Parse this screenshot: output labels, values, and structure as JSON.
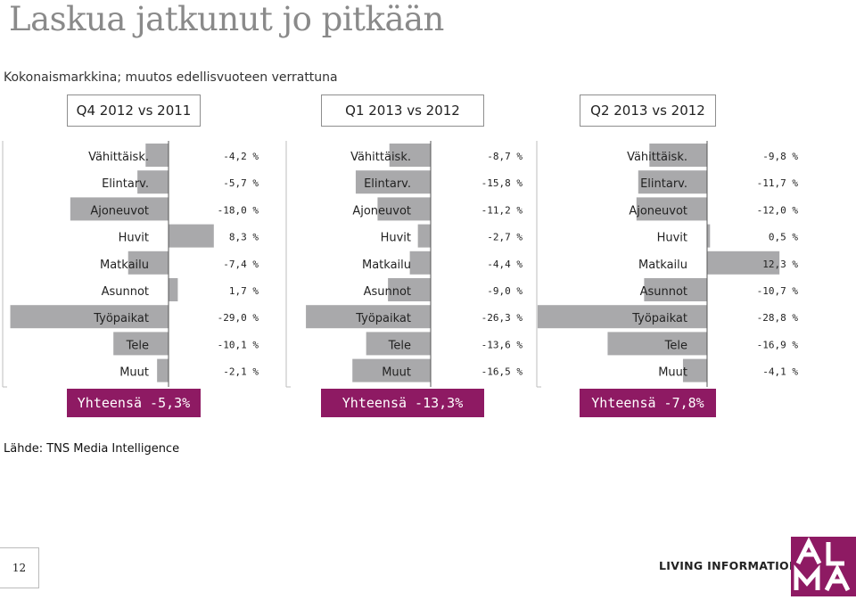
{
  "title": "Laskua jatkunut jo pitkään",
  "subtitle": "Kokonaismarkkina; muutos edellisvuoteen verrattuna",
  "source": "Lähde: TNS Media Intelligence",
  "page_number": "12",
  "footer": {
    "tagline": "LIVING INFORMATION",
    "logo": "ALMA"
  },
  "colors": {
    "bar": "#a9a9ab",
    "total": "#8e1a63",
    "axis": "#555555"
  },
  "chart_data": [
    {
      "type": "bar",
      "title": "Q4 2012 vs 2011",
      "total": "Yhteensä -5,3%",
      "categories": [
        "Vähittäisk.",
        "Elintarv.",
        "Ajoneuvot",
        "Huvit",
        "Matkailu",
        "Asunnot",
        "Työpaikat",
        "Tele",
        "Muut"
      ],
      "values": [
        -4.2,
        -5.7,
        -18.0,
        8.3,
        -7.4,
        1.7,
        -29.0,
        -10.1,
        -2.1
      ],
      "value_labels": [
        "-4,2 %",
        "-5,7 %",
        "-18,0 %",
        "8,3 %",
        "-7,4 %",
        "1,7 %",
        "-29,0 %",
        "-10,1 %",
        "-2,1 %"
      ]
    },
    {
      "type": "bar",
      "title": "Q1 2013 vs 2012",
      "total": "Yhteensä -13,3%",
      "categories": [
        "Vähittäisk.",
        "Elintarv.",
        "Ajoneuvot",
        "Huvit",
        "Matkailu",
        "Asunnot",
        "Työpaikat",
        "Tele",
        "Muut"
      ],
      "values": [
        -8.7,
        -15.8,
        -11.2,
        -2.7,
        -4.4,
        -9.0,
        -26.3,
        -13.6,
        -16.5
      ],
      "value_labels": [
        "-8,7 %",
        "-15,8 %",
        "-11,2 %",
        "-2,7 %",
        "-4,4 %",
        "-9,0 %",
        "-26,3 %",
        "-13,6 %",
        "-16,5 %"
      ]
    },
    {
      "type": "bar",
      "title": "Q2 2013 vs 2012",
      "total": "Yhteensä -7,8%",
      "categories": [
        "Vähittäisk.",
        "Elintarv.",
        "Ajoneuvot",
        "Huvit",
        "Matkailu",
        "Asunnot",
        "Työpaikat",
        "Tele",
        "Muut"
      ],
      "values": [
        -9.8,
        -11.7,
        -12.0,
        0.5,
        12.3,
        -10.7,
        -28.8,
        -16.9,
        -4.1
      ],
      "value_labels": [
        "-9,8 %",
        "-11,7 %",
        "-12,0 %",
        "0,5 %",
        "12,3 %",
        "-10,7 %",
        "-28,8 %",
        "-16,9 %",
        "-4,1 %"
      ]
    }
  ]
}
